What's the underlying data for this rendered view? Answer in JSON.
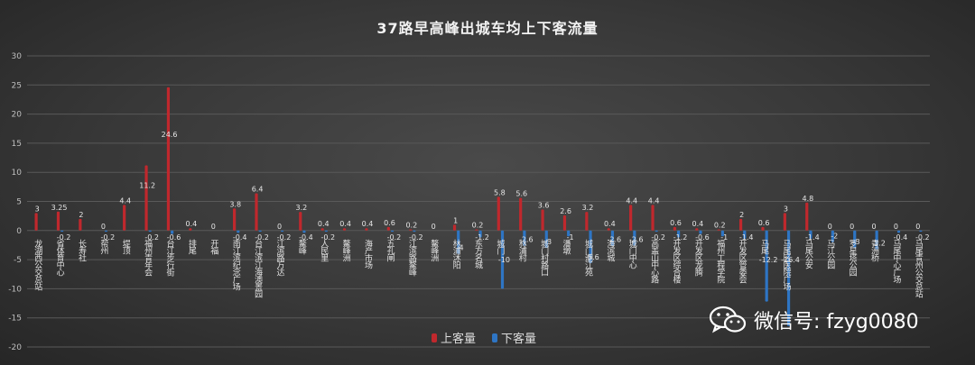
{
  "watermark": {
    "text": "微信号: fzyg0080",
    "icon": "wechat-icon"
  },
  "colors": {
    "up": "#c0282d",
    "down": "#2e75c4",
    "up_label": "#e6e6e6",
    "down_label": "#e6e6e6",
    "grid": "#595959",
    "axis_text": "#bfbfbf"
  },
  "chart_data": {
    "type": "bar",
    "title": "37路早高峰出城车均上下客流量",
    "xlabel": "",
    "ylabel": "",
    "ylim": [
      -20,
      30
    ],
    "yticks": [
      30,
      25,
      20,
      15,
      10,
      5,
      0,
      -5,
      -10,
      -15,
      -20
    ],
    "grid": true,
    "legend_position": "bottom",
    "categories": [
      "龙湖西公交总站",
      "省体育中心",
      "长寿社",
      "帮州",
      "堤顶",
      "福州青年会",
      "台江步行街",
      "排尾",
      "开福",
      "南江滨纪念广场",
      "台江滨江海澳景园",
      "江滨路万达",
      "鳌峰",
      "人民里",
      "鳌峰洲",
      "海产市场",
      "五孔闸",
      "江滨路鳌峰",
      "鳌峰洲",
      "林浦沐阳",
      "东方名城",
      "城门",
      "林浦村",
      "城门村路口",
      "潘墩",
      "城门潮江苑",
      "海滨城",
      "城门中心",
      "高盖山中心路",
      "开发区综合楼",
      "开发区龙腾",
      "福州工程学院",
      "开发区管委会",
      "马尾",
      "马尾区医院广场",
      "马尾公安",
      "马江公园",
      "罗星塔公园",
      "青洲桥",
      "马尾中心广场",
      "马尾青州公交总站"
    ],
    "series": [
      {
        "name": "上客量",
        "values": [
          3,
          3.25,
          2,
          0,
          4.4,
          11.2,
          24.6,
          0.4,
          0,
          3.8,
          6.4,
          0,
          3.2,
          0.4,
          0.4,
          0.4,
          0.6,
          0.2,
          0,
          1,
          0.2,
          5.8,
          5.6,
          3.6,
          2.6,
          3.2,
          0.4,
          4.4,
          4.4,
          0.6,
          0.4,
          0.2,
          2,
          0.6,
          3,
          4.8,
          0,
          0,
          0,
          0,
          0
        ]
      },
      {
        "name": "下客量",
        "values": [
          0,
          -0.2,
          0,
          -0.2,
          0,
          -0.2,
          -0.6,
          0,
          0,
          -0.4,
          -0.2,
          -0.2,
          -0.4,
          -0.2,
          0,
          0,
          -0.2,
          -0.2,
          0,
          -4,
          -1.2,
          -10,
          -2.6,
          -3,
          -1,
          -5.6,
          -2.6,
          -2.6,
          -0.2,
          -1.2,
          -0.6,
          -1,
          -1.4,
          -12.2,
          -16.4,
          -1.4,
          -2,
          -3,
          -3.2,
          -0.4,
          -0.2
        ]
      }
    ],
    "up_labels": [
      "3",
      "3.25",
      "2",
      "0",
      "4.4",
      "11.2",
      "24.6",
      "0.4",
      "0",
      "3.8",
      "6.4",
      "0",
      "3.2",
      "0.4",
      "0.4",
      "0.4",
      "0.6",
      "0.2",
      "0",
      "1",
      "0.2",
      "5.8",
      "5.6",
      "3.6",
      "2.6",
      "3.2",
      "0.4",
      "4.4",
      "4.4",
      "0.6",
      "0.4",
      "0.2",
      "2",
      "0.6",
      "3",
      "4.8",
      "0",
      "0",
      "0",
      "0",
      "0"
    ],
    "down_labels": [
      "",
      "-0.2",
      "",
      "-0.2",
      "",
      "-0.2",
      "-0.6",
      "",
      "",
      "-0.4",
      "-0.2",
      "-0.2",
      "-0.4",
      "-0.2",
      "",
      "",
      "-0.2",
      "-0.2",
      "",
      "-4",
      "-1.2",
      "-10",
      "-2.6",
      "-3",
      "-1",
      "-5.6",
      "-2.6",
      "-2.6",
      "-0.2",
      "-1.2",
      "-0.6",
      "-1",
      "-1.4",
      "-12.2",
      "-16.4",
      "-1.4",
      "-2",
      "-3",
      "-3.2",
      "-0.4",
      "-0.2"
    ]
  }
}
